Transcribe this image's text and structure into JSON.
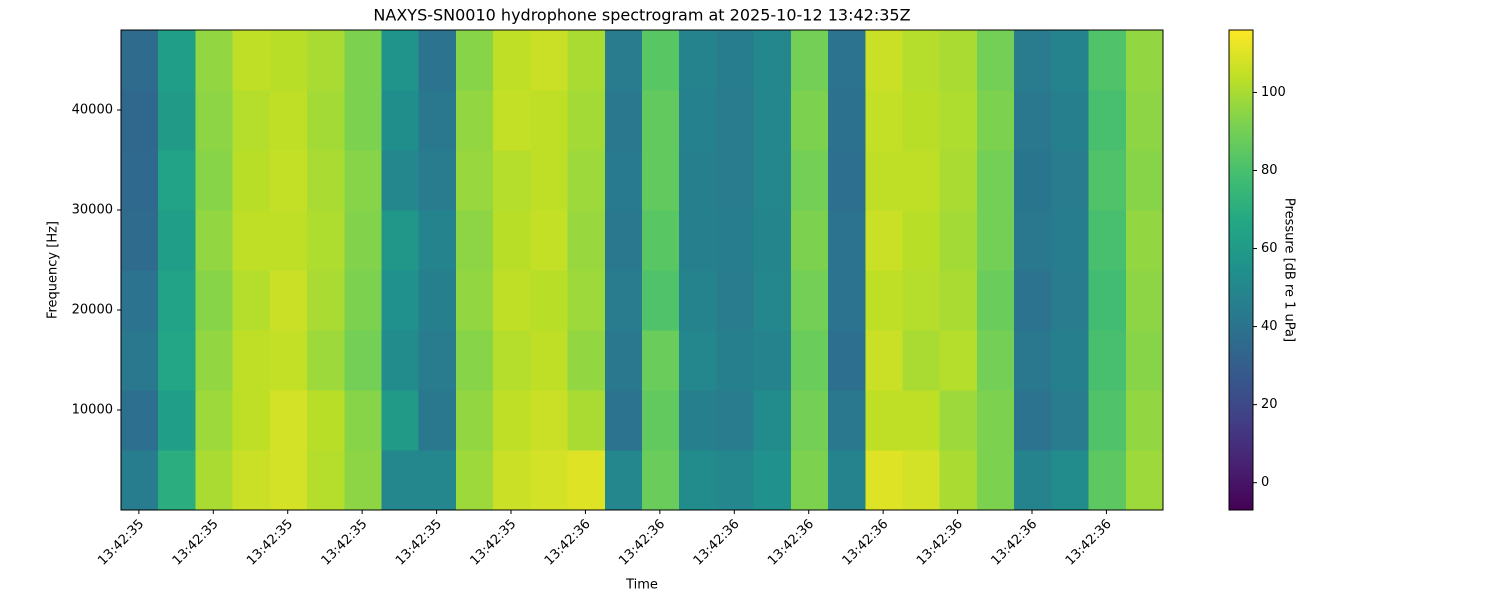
{
  "chart_data": {
    "type": "heatmap",
    "title": "NAXYS-SN0010 hydrophone spectrogram at 2025-10-12 13:42:35Z",
    "x_label": "Time",
    "y_label": "Frequency [Hz]",
    "colorbar_label": "Pressure [dB re 1 uPa]",
    "colormap": "viridis",
    "xbins": [
      35.376,
      35.426,
      35.476,
      35.526,
      35.576,
      35.626,
      35.676,
      35.726,
      35.776,
      35.826,
      35.876,
      35.926,
      35.976,
      36.026,
      36.076,
      36.126,
      36.176,
      36.226,
      36.276,
      36.326,
      36.376,
      36.426,
      36.476,
      36.526,
      36.576,
      36.626,
      36.676,
      36.726,
      36.776
    ],
    "ybins": [
      0,
      6000,
      12000,
      18000,
      24000,
      30000,
      36000,
      42000,
      48000
    ],
    "values": [
      [
        45,
        70,
        100,
        106,
        108,
        102,
        95,
        50,
        50,
        98,
        106,
        108,
        110,
        50,
        88,
        52,
        50,
        55,
        92,
        48,
        110,
        108,
        100,
        92,
        48,
        52,
        85,
        98
      ],
      [
        38,
        62,
        98,
        104,
        108,
        103,
        94,
        60,
        42,
        96,
        104,
        106,
        100,
        40,
        86,
        46,
        44,
        52,
        90,
        42,
        104,
        104,
        98,
        92,
        40,
        44,
        82,
        96
      ],
      [
        42,
        66,
        96,
        104,
        105,
        98,
        90,
        52,
        44,
        94,
        102,
        104,
        96,
        42,
        88,
        50,
        46,
        48,
        88,
        38,
        106,
        100,
        102,
        90,
        42,
        46,
        80,
        94
      ],
      [
        40,
        64,
        94,
        102,
        106,
        100,
        92,
        55,
        46,
        96,
        104,
        103,
        98,
        44,
        82,
        48,
        44,
        50,
        90,
        40,
        104,
        102,
        100,
        88,
        40,
        44,
        78,
        95
      ],
      [
        36,
        62,
        96,
        104,
        104,
        101,
        93,
        58,
        48,
        95,
        103,
        105,
        97,
        42,
        84,
        46,
        45,
        49,
        92,
        40,
        106,
        103,
        99,
        90,
        42,
        45,
        80,
        96
      ],
      [
        35,
        64,
        94,
        103,
        105,
        100,
        94,
        50,
        44,
        97,
        102,
        104,
        98,
        43,
        86,
        46,
        44,
        50,
        90,
        38,
        104,
        104,
        100,
        90,
        41,
        44,
        82,
        94
      ],
      [
        34,
        60,
        95,
        102,
        104,
        99,
        92,
        54,
        42,
        96,
        105,
        104,
        99,
        42,
        86,
        47,
        44,
        50,
        92,
        39,
        105,
        103,
        101,
        92,
        42,
        46,
        80,
        95
      ],
      [
        36,
        62,
        96,
        104,
        103,
        100,
        92,
        56,
        40,
        94,
        104,
        106,
        100,
        44,
        84,
        48,
        45,
        50,
        90,
        40,
        106,
        102,
        100,
        90,
        44,
        48,
        82,
        96
      ]
    ],
    "xlim": [
      35.376,
      36.776
    ],
    "xticks": [
      {
        "value": 35.4,
        "label": "13:42:35"
      },
      {
        "value": 35.5,
        "label": "13:42:35"
      },
      {
        "value": 35.6,
        "label": "13:42:35"
      },
      {
        "value": 35.7,
        "label": "13:42:35"
      },
      {
        "value": 35.8,
        "label": "13:42:35"
      },
      {
        "value": 35.9,
        "label": "13:42:35"
      },
      {
        "value": 36.0,
        "label": "13:42:36"
      },
      {
        "value": 36.1,
        "label": "13:42:36"
      },
      {
        "value": 36.2,
        "label": "13:42:36"
      },
      {
        "value": 36.3,
        "label": "13:42:36"
      },
      {
        "value": 36.4,
        "label": "13:42:36"
      },
      {
        "value": 36.5,
        "label": "13:42:36"
      },
      {
        "value": 36.6,
        "label": "13:42:36"
      },
      {
        "value": 36.7,
        "label": "13:42:36"
      }
    ],
    "ylim": [
      0,
      48000
    ],
    "yticks": [
      10000,
      20000,
      30000,
      40000
    ],
    "zlim": [
      -7,
      116
    ],
    "zticks": [
      0,
      20,
      40,
      60,
      80,
      100
    ]
  }
}
